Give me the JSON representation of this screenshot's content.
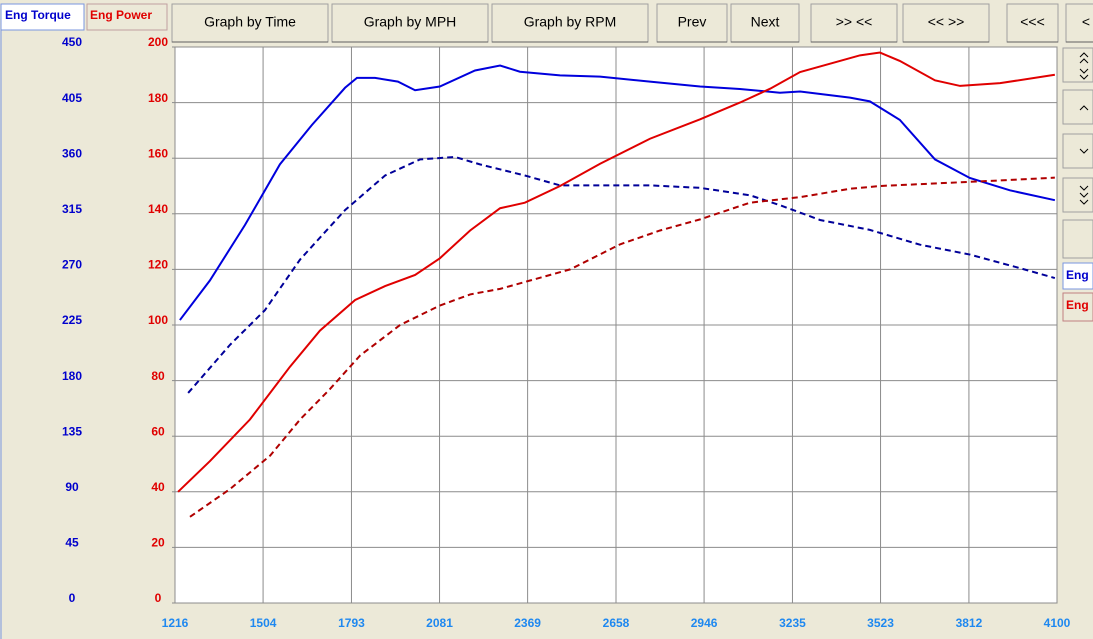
{
  "toolbar": {
    "buttons": [
      "Graph by Time",
      "Graph by MPH",
      "Graph by RPM",
      "Prev",
      "Next",
      ">> <<",
      "<< >>",
      "<<<",
      "<"
    ]
  },
  "tabs": [
    "Eng Torque",
    "Eng Power"
  ],
  "side_labels": [
    "Eng",
    "Eng"
  ],
  "chart_data": {
    "type": "line",
    "xlim": [
      1216,
      4100
    ],
    "xticks": [
      1216,
      1504,
      1793,
      2081,
      2369,
      2658,
      2946,
      3235,
      3523,
      3812,
      4100
    ],
    "ylim": [
      0,
      200
    ],
    "yticks": [
      0,
      20,
      40,
      60,
      80,
      100,
      120,
      140,
      160,
      180,
      200
    ],
    "y_color": "#e00000",
    "y2lim": [
      0,
      450
    ],
    "y2ticks": [
      0,
      45,
      90,
      135,
      180,
      225,
      270,
      315,
      360,
      405,
      450
    ],
    "y2_color": "#0000cc",
    "x_color": "#1e88f0",
    "grid": true,
    "series": [
      {
        "color": "#0000dd",
        "line_style": "solid",
        "axis": "y2",
        "x": [
          1232,
          1330,
          1445,
          1559,
          1664,
          1772,
          1811,
          1870,
          1945,
          2001,
          2082,
          2197,
          2279,
          2344,
          2475,
          2606,
          2769,
          2933,
          3063,
          3194,
          3260,
          3423,
          3488,
          3586,
          3701,
          3815,
          3946,
          4093
        ],
        "values": [
          229,
          261,
          306,
          355,
          387,
          417,
          425,
          425,
          422,
          415,
          418,
          431,
          435,
          430,
          427,
          426,
          422,
          418,
          416,
          413,
          414,
          409,
          406,
          391,
          359,
          344,
          334,
          326
        ]
      },
      {
        "color": "#000099",
        "line_style": "dashed",
        "axis": "y2",
        "x": [
          1259,
          1396,
          1510,
          1625,
          1772,
          1903,
          2017,
          2132,
          2213,
          2360,
          2475,
          2606,
          2769,
          2933,
          3096,
          3194,
          3325,
          3488,
          3652,
          3815,
          3979,
          4093
        ],
        "values": [
          170,
          209,
          237,
          278,
          318,
          346,
          359,
          361,
          355,
          346,
          338,
          338,
          338,
          336,
          330,
          322,
          310,
          302,
          290,
          282,
          271,
          263
        ]
      },
      {
        "color": "#e00000",
        "line_style": "solid",
        "x": [
          1226,
          1330,
          1461,
          1592,
          1690,
          1805,
          1903,
          2001,
          2082,
          2181,
          2279,
          2360,
          2475,
          2606,
          2769,
          2933,
          3063,
          3162,
          3260,
          3358,
          3456,
          3521,
          3586,
          3701,
          3783,
          3914,
          4093
        ],
        "values": [
          40,
          51,
          66,
          85,
          98,
          109,
          114,
          118,
          124,
          134,
          142,
          144,
          150,
          158,
          167,
          174,
          180,
          185,
          191,
          194,
          197,
          198,
          195,
          188,
          186,
          187,
          190
        ]
      },
      {
        "color": "#b00000",
        "line_style": "dashed",
        "x": [
          1265,
          1396,
          1527,
          1625,
          1723,
          1821,
          1952,
          2082,
          2181,
          2279,
          2377,
          2508,
          2671,
          2802,
          2933,
          3096,
          3260,
          3423,
          3521,
          3717,
          3914,
          4093
        ],
        "values": [
          31,
          41,
          53,
          66,
          77,
          89,
          100,
          107,
          111,
          113,
          116,
          120,
          129,
          134,
          138,
          144,
          146,
          149,
          150,
          151,
          152,
          153
        ]
      }
    ]
  }
}
